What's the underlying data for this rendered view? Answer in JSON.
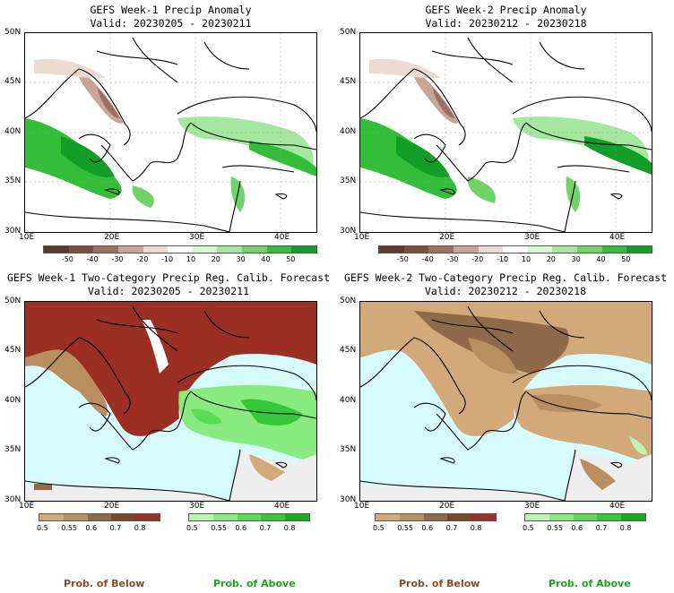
{
  "panels": {
    "tl": {
      "title": "GEFS Week-1 Precip Anomaly",
      "valid": "Valid: 20230205 - 20230211"
    },
    "tr": {
      "title": "GEFS Week-2 Precip Anomaly",
      "valid": "Valid: 20230212 - 20230218"
    },
    "bl": {
      "title": "GEFS Week-1 Two-Category Precip Reg. Calib. Forecast",
      "valid": "Valid: 20230205 - 20230211"
    },
    "br": {
      "title": "GEFS Week-2 Two-Category Precip Reg. Calib. Forecast",
      "valid": "Valid: 20230212 - 20230218"
    }
  },
  "axes": {
    "lat_labels": [
      "50N",
      "45N",
      "40N",
      "35N",
      "30N"
    ],
    "lon_labels": [
      "10E",
      "20E",
      "30E",
      "40E"
    ]
  },
  "anomaly_colorbar": {
    "labels": [
      "-50",
      "-40",
      "-30",
      "-20",
      "-10",
      "10",
      "20",
      "30",
      "40",
      "50"
    ],
    "colors": [
      "#5c3a2c",
      "#7a4f3e",
      "#9c7060",
      "#c7a597",
      "#ecdbd2",
      "#ffffff",
      "#d8f5d5",
      "#a4e79e",
      "#6fd468",
      "#33be3a",
      "#109e26"
    ]
  },
  "below_colorbar": {
    "labels": [
      "0.5",
      "0.55",
      "0.6",
      "0.7",
      "0.8"
    ],
    "colors": [
      "#d2aa79",
      "#b98f60",
      "#8f6a48",
      "#7a4822",
      "#9a2f22"
    ]
  },
  "above_colorbar": {
    "labels": [
      "0.5",
      "0.55",
      "0.6",
      "0.7",
      "0.8"
    ],
    "colors": [
      "#b9f7b0",
      "#88eb7e",
      "#5bdc56",
      "#35c838",
      "#11b01a"
    ]
  },
  "prob_labels": {
    "below": "Prob. of Below",
    "above": "Prob. of Above"
  },
  "colors": {
    "sea": "#d6fbff",
    "below_text": "#8b4a26",
    "above_text": "#1aa81a"
  }
}
